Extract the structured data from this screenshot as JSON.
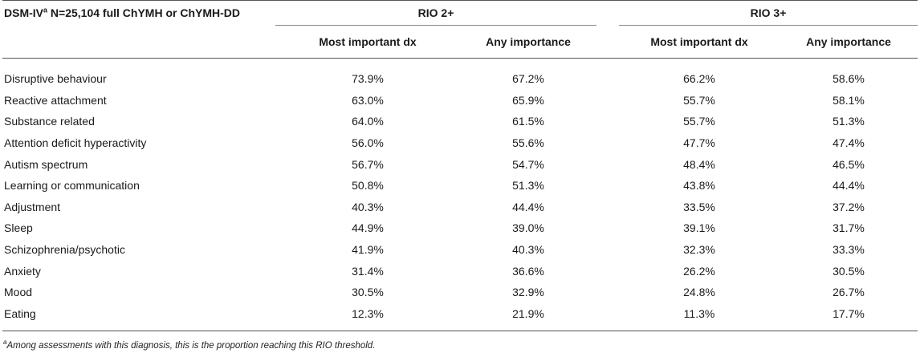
{
  "table": {
    "corner_prefix": "DSM-IV",
    "corner_sup": "a",
    "corner_suffix": " N=25,104 full ChYMH or ChYMH-DD",
    "groups": [
      "RIO 2+",
      "RIO 3+"
    ],
    "subheaders": [
      "Most important dx",
      "Any importance",
      "Most important dx",
      "Any importance"
    ],
    "rows": [
      {
        "label": "Disruptive behaviour",
        "values": [
          "73.9%",
          "67.2%",
          "66.2%",
          "58.6%"
        ]
      },
      {
        "label": "Reactive attachment",
        "values": [
          "63.0%",
          "65.9%",
          "55.7%",
          "58.1%"
        ]
      },
      {
        "label": "Substance related",
        "values": [
          "64.0%",
          "61.5%",
          "55.7%",
          "51.3%"
        ]
      },
      {
        "label": "Attention deficit hyperactivity",
        "values": [
          "56.0%",
          "55.6%",
          "47.7%",
          "47.4%"
        ]
      },
      {
        "label": "Autism spectrum",
        "values": [
          "56.7%",
          "54.7%",
          "48.4%",
          "46.5%"
        ]
      },
      {
        "label": "Learning or communication",
        "values": [
          "50.8%",
          "51.3%",
          "43.8%",
          "44.4%"
        ]
      },
      {
        "label": "Adjustment",
        "values": [
          "40.3%",
          "44.4%",
          "33.5%",
          "37.2%"
        ]
      },
      {
        "label": "Sleep",
        "values": [
          "44.9%",
          "39.0%",
          "39.1%",
          "31.7%"
        ]
      },
      {
        "label": "Schizophrenia/psychotic",
        "values": [
          "41.9%",
          "40.3%",
          "32.3%",
          "33.3%"
        ]
      },
      {
        "label": "Anxiety",
        "values": [
          "31.4%",
          "36.6%",
          "26.2%",
          "30.5%"
        ]
      },
      {
        "label": "Mood",
        "values": [
          "30.5%",
          "32.9%",
          "24.8%",
          "26.7%"
        ]
      },
      {
        "label": "Eating",
        "values": [
          "12.3%",
          "21.9%",
          "11.3%",
          "17.7%"
        ]
      }
    ]
  },
  "footnote": {
    "sup": "a",
    "text": "Among assessments with this diagnosis, this is the proportion reaching this RIO threshold."
  }
}
